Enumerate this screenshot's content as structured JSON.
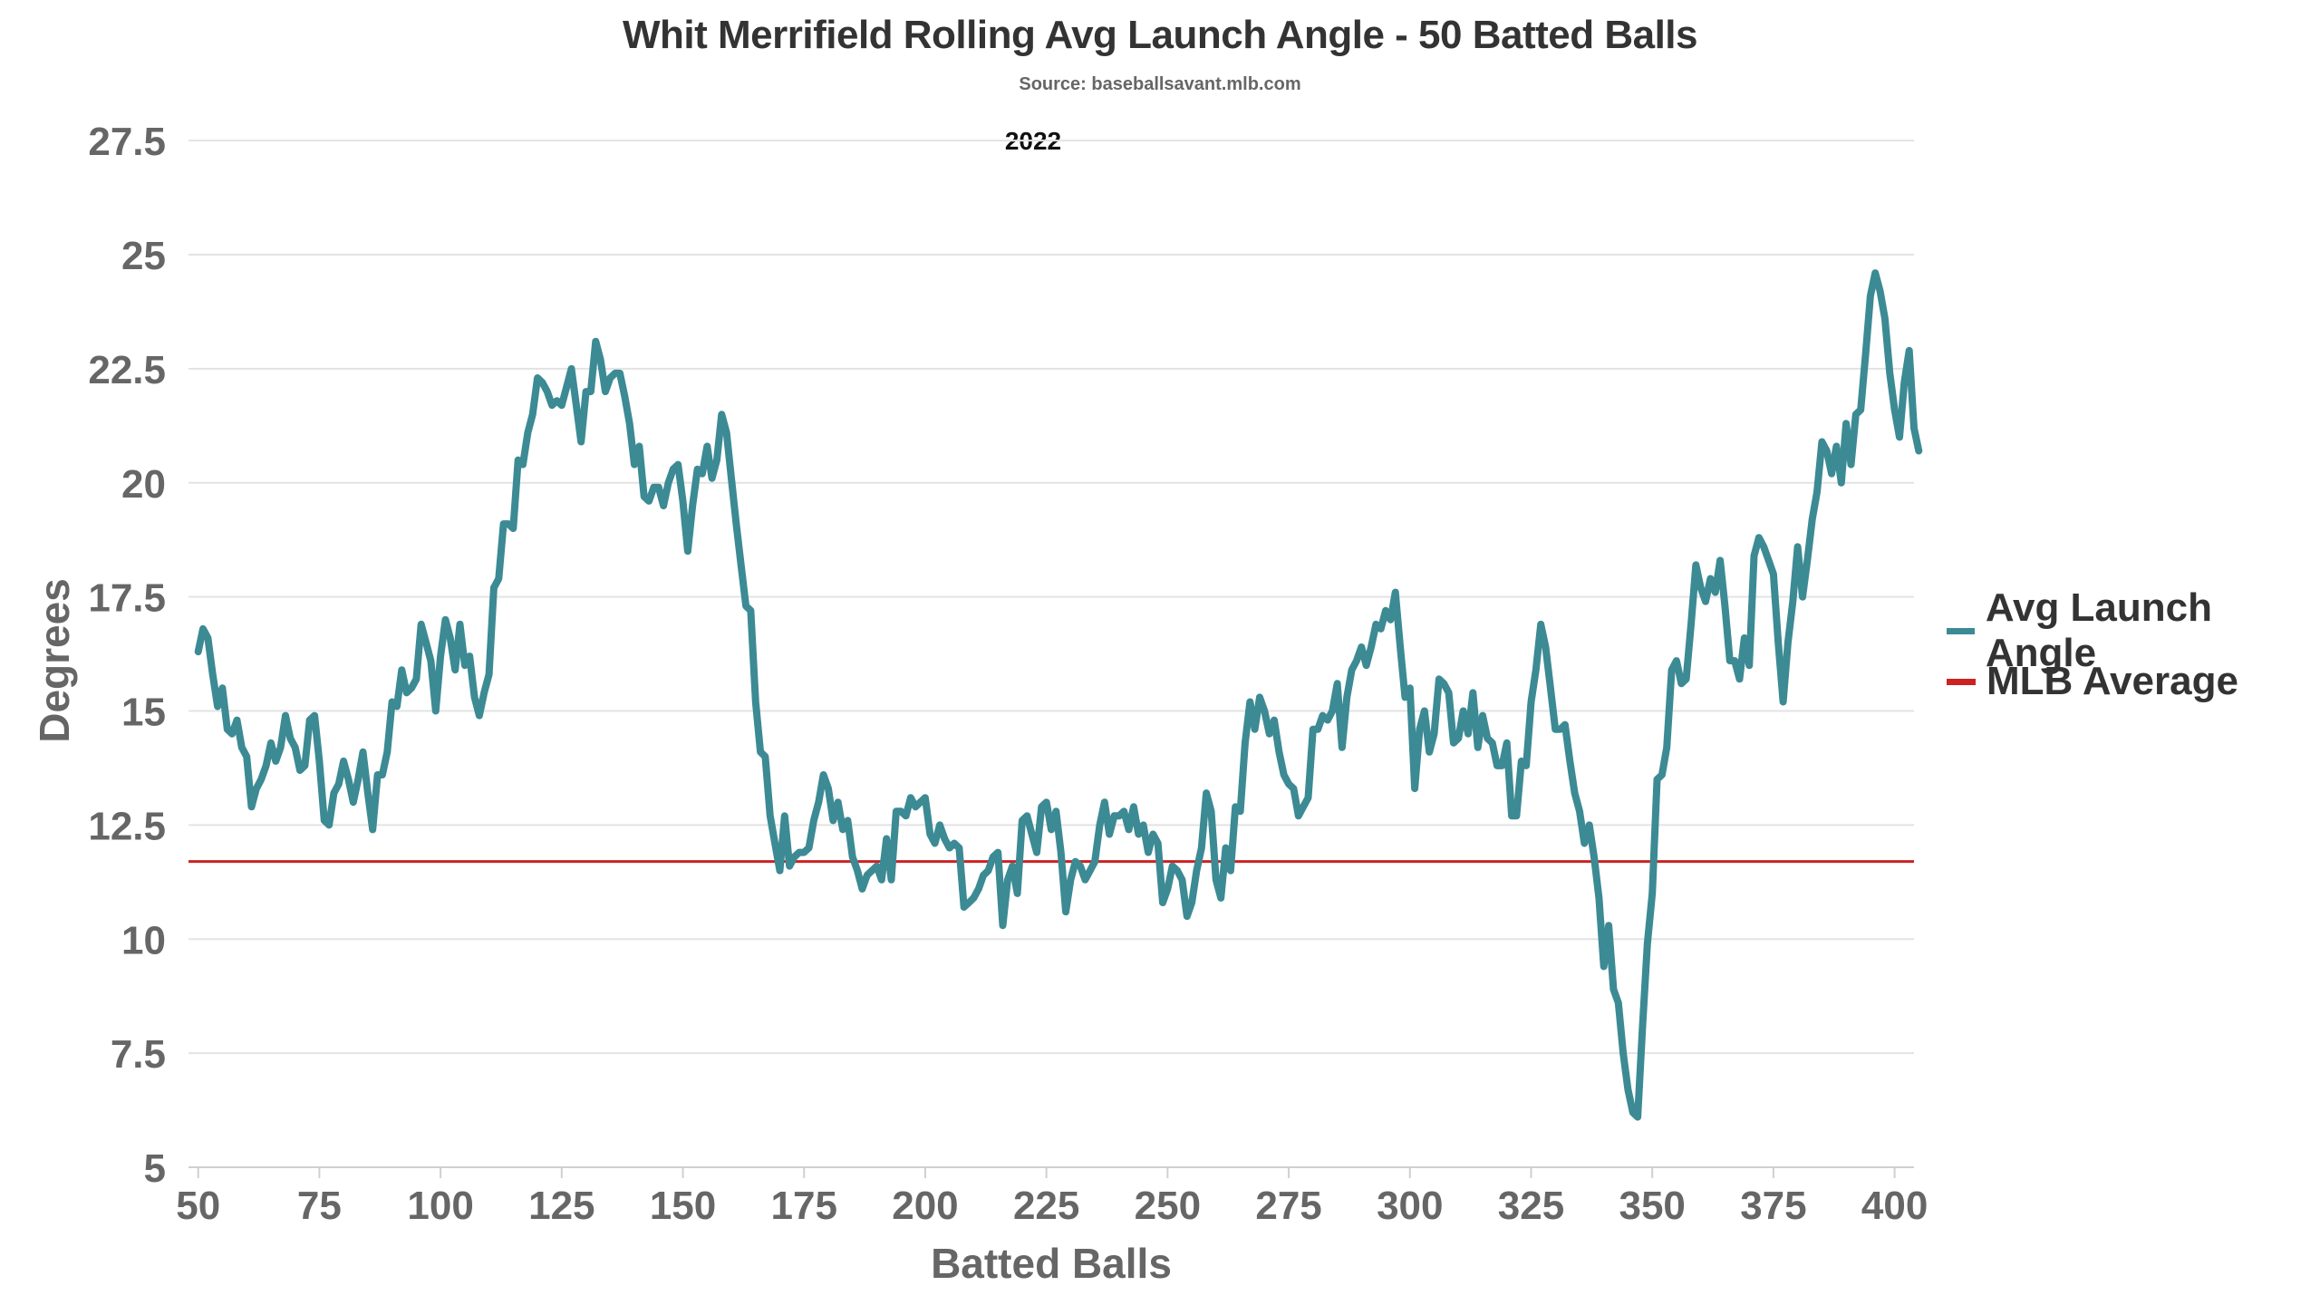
{
  "chart_data": {
    "type": "line",
    "title": "Whit Merrifield Rolling Avg Launch Angle - 50 Batted Balls",
    "subtitle": "Source: baseballsavant.mlb.com",
    "annotation": "2022",
    "xlabel": "Batted Balls",
    "ylabel": "Degrees",
    "xlim": [
      48,
      404
    ],
    "ylim": [
      5,
      28
    ],
    "x_ticks": [
      50,
      75,
      100,
      125,
      150,
      175,
      200,
      225,
      250,
      275,
      300,
      325,
      350,
      375,
      400
    ],
    "y_ticks": [
      5,
      7.5,
      10,
      12.5,
      15,
      17.5,
      20,
      22.5,
      25,
      27.5
    ],
    "y_tick_labels": [
      "5",
      "7.5",
      "10",
      "12.5",
      "15",
      "17.5",
      "20",
      "22.5",
      "25",
      "27.5"
    ],
    "grid": "horizontal",
    "legend_position": "right",
    "series": [
      {
        "name": "Avg Launch Angle",
        "color": "#3c8a94",
        "x_start": 50,
        "x_step": 1,
        "values": [
          16.3,
          16.8,
          16.6,
          15.8,
          15.1,
          15.5,
          14.6,
          14.5,
          14.8,
          14.2,
          14.0,
          12.9,
          13.3,
          13.5,
          13.8,
          14.3,
          13.9,
          14.2,
          14.9,
          14.4,
          14.2,
          13.7,
          13.8,
          14.8,
          14.9,
          13.9,
          12.6,
          12.5,
          13.2,
          13.4,
          13.9,
          13.5,
          13.0,
          13.5,
          14.1,
          13.2,
          12.4,
          13.6,
          13.6,
          14.1,
          15.2,
          15.1,
          15.9,
          15.4,
          15.5,
          15.7,
          16.9,
          16.5,
          16.1,
          15.0,
          16.2,
          17.0,
          16.6,
          15.9,
          16.9,
          16.0,
          16.2,
          15.3,
          14.9,
          15.4,
          15.8,
          17.7,
          17.9,
          19.1,
          19.1,
          19.0,
          20.5,
          20.4,
          21.1,
          21.5,
          22.3,
          22.2,
          22.0,
          21.7,
          21.8,
          21.7,
          22.1,
          22.5,
          21.7,
          20.9,
          22.0,
          22.0,
          23.1,
          22.7,
          22.0,
          22.3,
          22.4,
          22.4,
          21.9,
          21.3,
          20.4,
          20.8,
          19.7,
          19.6,
          19.9,
          19.9,
          19.5,
          20.0,
          20.3,
          20.4,
          19.6,
          18.5,
          19.5,
          20.3,
          20.2,
          20.8,
          20.1,
          20.5,
          21.5,
          21.1,
          20.1,
          19.1,
          18.2,
          17.3,
          17.2,
          15.2,
          14.1,
          14.0,
          12.7,
          12.1,
          11.5,
          12.7,
          11.6,
          11.8,
          11.9,
          11.9,
          12.0,
          12.6,
          13.0,
          13.6,
          13.3,
          12.6,
          13.0,
          12.4,
          12.6,
          11.8,
          11.5,
          11.1,
          11.4,
          11.5,
          11.6,
          11.3,
          12.2,
          11.3,
          12.8,
          12.8,
          12.7,
          13.1,
          12.9,
          13.0,
          13.1,
          12.3,
          12.1,
          12.5,
          12.2,
          12.0,
          12.1,
          12.0,
          10.7,
          10.8,
          10.9,
          11.1,
          11.4,
          11.5,
          11.8,
          11.9,
          10.3,
          11.3,
          11.6,
          11.0,
          12.6,
          12.7,
          12.3,
          11.9,
          12.9,
          13.0,
          12.4,
          12.8,
          11.9,
          10.6,
          11.3,
          11.7,
          11.6,
          11.3,
          11.5,
          11.7,
          12.5,
          13.0,
          12.3,
          12.7,
          12.7,
          12.8,
          12.4,
          12.9,
          12.3,
          12.5,
          11.9,
          12.3,
          12.1,
          10.8,
          11.1,
          11.6,
          11.5,
          11.3,
          10.5,
          10.8,
          11.5,
          12.0,
          13.2,
          12.8,
          11.3,
          10.9,
          12.0,
          11.5,
          12.9,
          12.8,
          14.3,
          15.2,
          14.6,
          15.3,
          15.0,
          14.5,
          14.8,
          14.1,
          13.6,
          13.4,
          13.3,
          12.7,
          12.9,
          13.1,
          14.6,
          14.6,
          14.9,
          14.8,
          15.0,
          15.6,
          14.2,
          15.3,
          15.9,
          16.1,
          16.4,
          16.0,
          16.4,
          16.9,
          16.8,
          17.2,
          17.0,
          17.6,
          16.4,
          15.3,
          15.5,
          13.3,
          14.6,
          15.0,
          14.1,
          14.5,
          15.7,
          15.6,
          15.4,
          14.3,
          14.4,
          15.0,
          14.5,
          15.4,
          14.2,
          14.9,
          14.4,
          14.3,
          13.8,
          13.8,
          14.3,
          12.7,
          12.7,
          13.9,
          13.8,
          15.2,
          15.9,
          16.9,
          16.4,
          15.5,
          14.6,
          14.6,
          14.7,
          13.9,
          13.2,
          12.8,
          12.1,
          12.5,
          11.8,
          10.9,
          9.4,
          10.3,
          8.9,
          8.6,
          7.5,
          6.7,
          6.2,
          6.1,
          8.1,
          9.9,
          11.0,
          13.5,
          13.6,
          14.2,
          15.9,
          16.1,
          15.6,
          15.7,
          16.9,
          18.2,
          17.7,
          17.4,
          17.9,
          17.6,
          18.3,
          17.3,
          16.1,
          16.1,
          15.7,
          16.6,
          16.0,
          18.4,
          18.8,
          18.6,
          18.3,
          18.0,
          16.5,
          15.2,
          16.5,
          17.4,
          18.6,
          17.5,
          18.3,
          19.2,
          19.8,
          20.9,
          20.7,
          20.2,
          20.8,
          20.0,
          21.3,
          20.4,
          21.5,
          21.6,
          22.8,
          24.1,
          24.6,
          24.2,
          23.6,
          22.4,
          21.6,
          21.0,
          22.2,
          22.9,
          21.2,
          20.7
        ]
      },
      {
        "name": "MLB Average",
        "color": "#cc2222",
        "constant": 11.7
      }
    ]
  }
}
